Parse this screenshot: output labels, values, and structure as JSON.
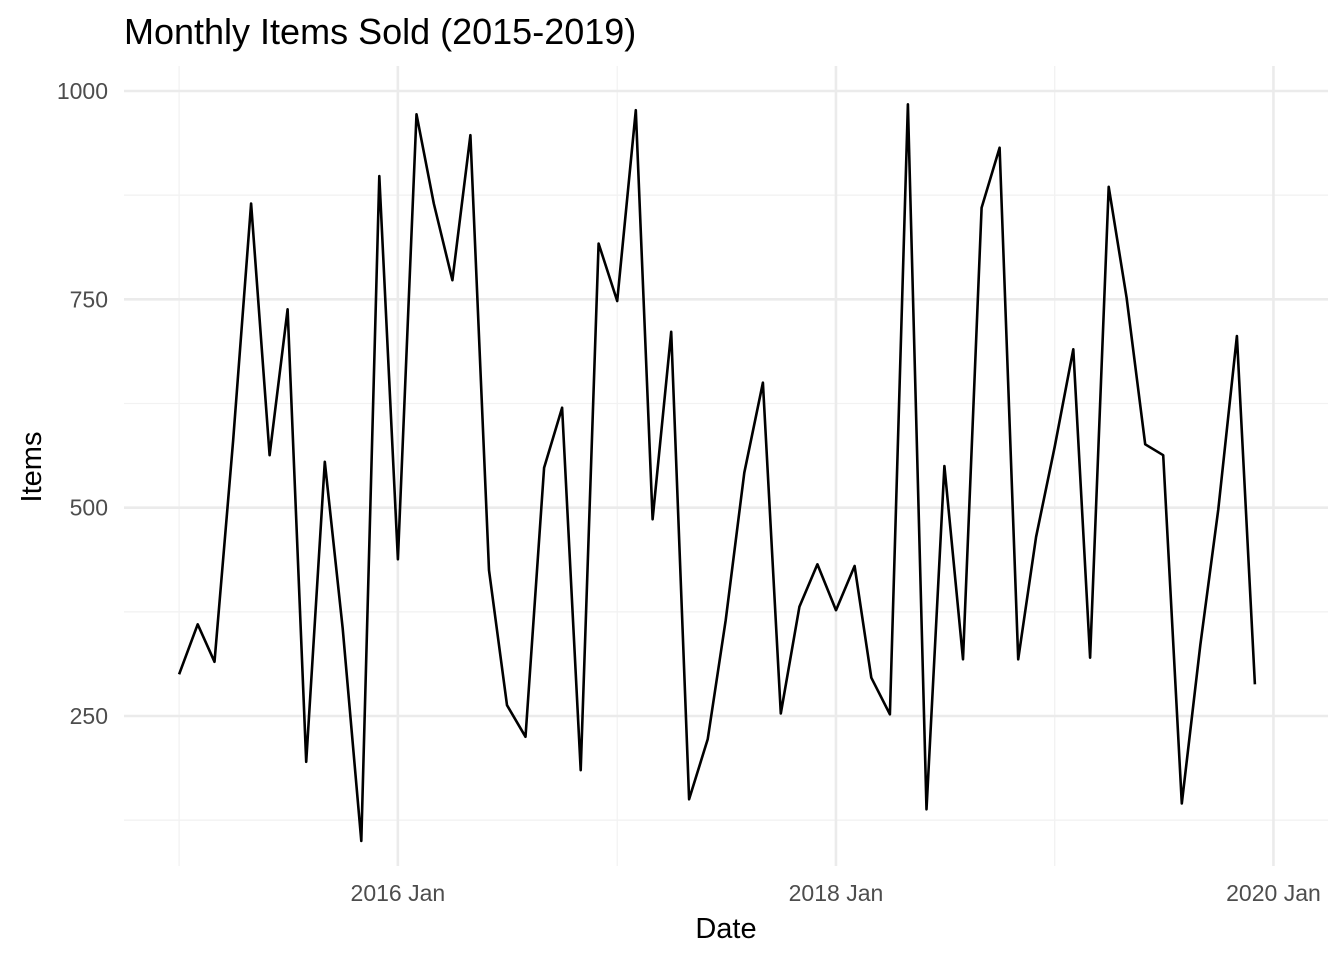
{
  "chart_data": {
    "type": "line",
    "title": "Monthly Items Sold (2015-2019)",
    "xlabel": "Date",
    "ylabel": "Items",
    "x_axis_type": "date",
    "xlim": [
      "2014-10-01",
      "2020-04-01"
    ],
    "ylim": [
      70,
      1030
    ],
    "x_ticks": [
      {
        "date": "2016-01-01",
        "label": "2016 Jan"
      },
      {
        "date": "2018-01-01",
        "label": "2018 Jan"
      },
      {
        "date": "2020-01-01",
        "label": "2020 Jan"
      }
    ],
    "y_ticks": [
      250,
      500,
      750,
      1000
    ],
    "grid": true,
    "legend": "none",
    "series": [
      {
        "color": "#000000",
        "x": [
          "2015-01",
          "2015-02",
          "2015-03",
          "2015-04",
          "2015-05",
          "2015-06",
          "2015-07",
          "2015-08",
          "2015-09",
          "2015-10",
          "2015-11",
          "2015-12",
          "2016-01",
          "2016-02",
          "2016-03",
          "2016-04",
          "2016-05",
          "2016-06",
          "2016-07",
          "2016-08",
          "2016-09",
          "2016-10",
          "2016-11",
          "2016-12",
          "2017-01",
          "2017-02",
          "2017-03",
          "2017-04",
          "2017-05",
          "2017-06",
          "2017-07",
          "2017-08",
          "2017-09",
          "2017-10",
          "2017-11",
          "2017-12",
          "2018-01",
          "2018-02",
          "2018-03",
          "2018-04",
          "2018-05",
          "2018-06",
          "2018-07",
          "2018-08",
          "2018-09",
          "2018-10",
          "2018-11",
          "2018-12",
          "2019-01",
          "2019-02",
          "2019-03",
          "2019-04",
          "2019-05",
          "2019-06",
          "2019-07",
          "2019-08",
          "2019-09",
          "2019-10",
          "2019-11",
          "2019-12"
        ],
        "values": [
          300,
          360,
          315,
          580,
          865,
          563,
          738,
          195,
          555,
          355,
          100,
          898,
          438,
          972,
          865,
          773,
          947,
          425,
          263,
          225,
          548,
          620,
          185,
          817,
          748,
          977,
          486,
          711,
          150,
          222,
          365,
          542,
          650,
          253,
          381,
          432,
          377,
          430,
          296,
          252,
          984,
          138,
          550,
          318,
          860,
          932,
          318,
          465,
          573,
          690,
          320,
          885,
          752,
          576,
          563,
          145,
          335,
          498,
          706,
          288
        ]
      }
    ]
  }
}
